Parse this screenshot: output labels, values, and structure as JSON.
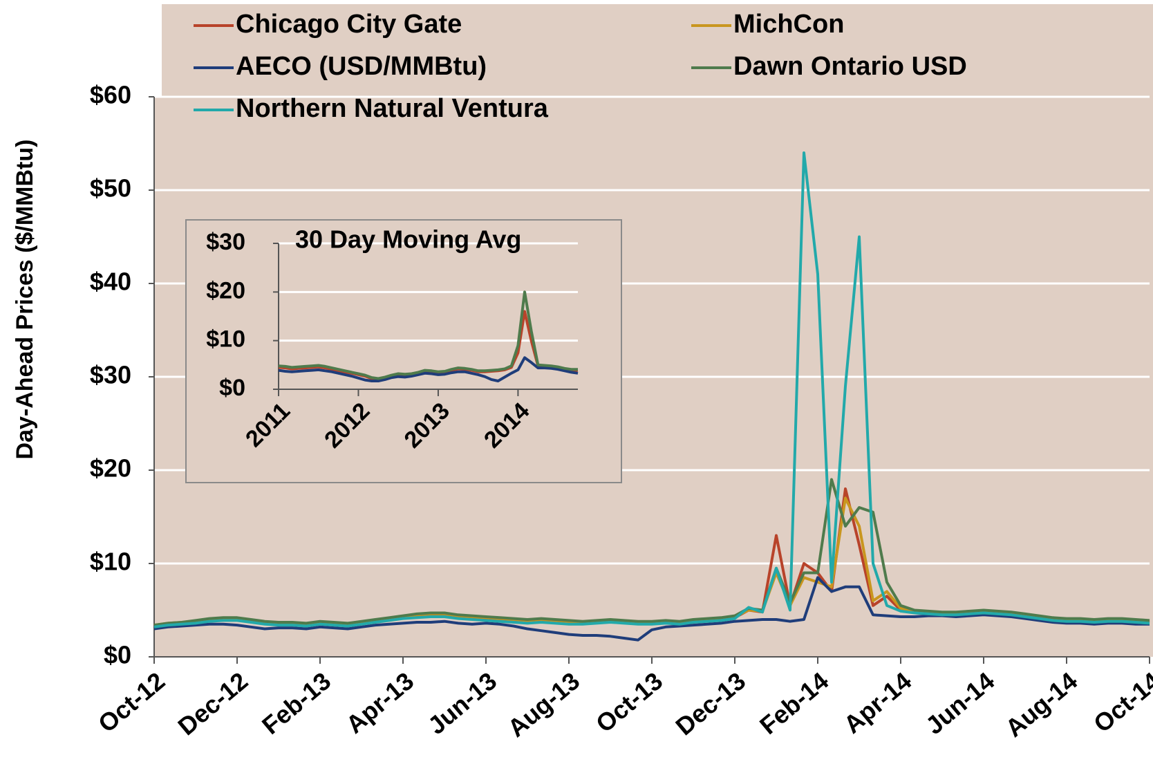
{
  "chart_data": [
    {
      "type": "line",
      "y_label": "Day-Ahead Prices ($/MMBtu)",
      "categories": [
        "Oct-12",
        null,
        null,
        null,
        null,
        null,
        "Dec-12",
        null,
        null,
        null,
        null,
        null,
        "Feb-13",
        null,
        null,
        null,
        null,
        null,
        "Apr-13",
        null,
        null,
        null,
        null,
        null,
        "Jun-13",
        null,
        null,
        null,
        null,
        null,
        "Aug-13",
        null,
        null,
        null,
        null,
        null,
        "Oct-13",
        null,
        null,
        null,
        null,
        null,
        "Dec-13",
        null,
        null,
        null,
        null,
        null,
        "Feb-14",
        null,
        null,
        null,
        null,
        null,
        "Apr-14",
        null,
        null,
        null,
        null,
        null,
        "Jun-14",
        null,
        null,
        null,
        null,
        null,
        "Aug-14",
        null,
        null,
        null,
        null,
        null,
        "Oct-14"
      ],
      "ylim": [
        0,
        60
      ],
      "yticks": [
        {
          "value": 0,
          "label": "$0"
        },
        {
          "value": 10,
          "label": "$10"
        },
        {
          "value": 20,
          "label": "$20"
        },
        {
          "value": 30,
          "label": "$30"
        },
        {
          "value": 40,
          "label": "$40"
        },
        {
          "value": 50,
          "label": "$50"
        },
        {
          "value": 60,
          "label": "$60"
        }
      ],
      "grid": true,
      "legend": "top",
      "series": [
        {
          "name": "Chicago City Gate",
          "color": "#b8432a",
          "values": [
            3.3,
            3.5,
            3.6,
            3.7,
            3.9,
            4.0,
            4.0,
            3.8,
            3.6,
            3.5,
            3.5,
            3.4,
            3.6,
            3.5,
            3.4,
            3.6,
            3.8,
            4.0,
            4.2,
            4.4,
            4.5,
            4.5,
            4.3,
            4.2,
            4.1,
            4.0,
            3.9,
            3.8,
            3.9,
            3.8,
            3.7,
            3.6,
            3.7,
            3.8,
            3.7,
            3.6,
            3.6,
            3.7,
            3.6,
            3.8,
            3.9,
            4.0,
            4.2,
            5.0,
            4.8,
            13.0,
            5.5,
            10.0,
            9.0,
            7.0,
            18.0,
            12.0,
            5.5,
            6.5,
            5.0,
            4.8,
            4.7,
            4.6,
            4.6,
            4.7,
            4.8,
            4.7,
            4.6,
            4.4,
            4.2,
            4.0,
            3.9,
            3.9,
            3.8,
            3.9,
            3.9,
            3.8,
            3.7
          ]
        },
        {
          "name": "MichCon",
          "color": "#c9961f",
          "values": [
            3.4,
            3.6,
            3.7,
            3.8,
            4.0,
            4.1,
            4.1,
            3.9,
            3.7,
            3.6,
            3.6,
            3.5,
            3.7,
            3.6,
            3.5,
            3.7,
            3.9,
            4.1,
            4.3,
            4.5,
            4.6,
            4.6,
            4.4,
            4.3,
            4.2,
            4.1,
            4.0,
            3.9,
            4.0,
            3.9,
            3.8,
            3.7,
            3.8,
            3.9,
            3.8,
            3.7,
            3.7,
            3.8,
            3.7,
            3.9,
            4.0,
            4.1,
            4.3,
            5.0,
            4.9,
            9.0,
            5.5,
            8.5,
            8.0,
            7.5,
            17.0,
            14.0,
            6.0,
            7.0,
            5.2,
            4.9,
            4.8,
            4.7,
            4.7,
            4.8,
            4.9,
            4.8,
            4.7,
            4.5,
            4.3,
            4.1,
            4.0,
            4.0,
            3.9,
            4.0,
            4.0,
            3.9,
            3.8
          ]
        },
        {
          "name": "AECO (USD/MMBtu)",
          "color": "#1f3d7a",
          "values": [
            3.0,
            3.2,
            3.3,
            3.4,
            3.5,
            3.5,
            3.4,
            3.2,
            3.0,
            3.1,
            3.1,
            3.0,
            3.2,
            3.1,
            3.0,
            3.2,
            3.4,
            3.5,
            3.6,
            3.7,
            3.7,
            3.8,
            3.6,
            3.5,
            3.6,
            3.5,
            3.3,
            3.0,
            2.8,
            2.6,
            2.4,
            2.3,
            2.3,
            2.2,
            2.0,
            1.8,
            2.9,
            3.2,
            3.3,
            3.4,
            3.5,
            3.6,
            3.8,
            3.9,
            4.0,
            4.0,
            3.8,
            4.0,
            8.5,
            7.0,
            7.5,
            7.5,
            4.5,
            4.4,
            4.3,
            4.3,
            4.4,
            4.4,
            4.3,
            4.4,
            4.5,
            4.4,
            4.3,
            4.1,
            3.9,
            3.7,
            3.6,
            3.6,
            3.5,
            3.6,
            3.6,
            3.5,
            3.5
          ]
        },
        {
          "name": "Dawn Ontario USD",
          "color": "#4f7b4c",
          "values": [
            3.4,
            3.6,
            3.7,
            3.9,
            4.1,
            4.2,
            4.2,
            4.0,
            3.8,
            3.7,
            3.7,
            3.6,
            3.8,
            3.7,
            3.6,
            3.8,
            4.0,
            4.2,
            4.4,
            4.6,
            4.7,
            4.7,
            4.5,
            4.4,
            4.3,
            4.2,
            4.1,
            4.0,
            4.1,
            4.0,
            3.9,
            3.8,
            3.9,
            4.0,
            3.9,
            3.8,
            3.8,
            3.9,
            3.8,
            4.0,
            4.1,
            4.2,
            4.4,
            5.2,
            5.0,
            9.5,
            5.8,
            9.0,
            9.0,
            19.0,
            14.0,
            16.0,
            15.5,
            8.0,
            5.5,
            5.0,
            4.9,
            4.8,
            4.8,
            4.9,
            5.0,
            4.9,
            4.8,
            4.6,
            4.4,
            4.2,
            4.1,
            4.1,
            4.0,
            4.1,
            4.1,
            4.0,
            3.9
          ]
        },
        {
          "name": "Northern Natural Ventura",
          "color": "#22a9aa",
          "values": [
            3.2,
            3.4,
            3.5,
            3.6,
            3.8,
            3.9,
            3.9,
            3.7,
            3.5,
            3.4,
            3.4,
            3.3,
            3.5,
            3.4,
            3.3,
            3.5,
            3.7,
            3.9,
            4.1,
            4.2,
            4.3,
            4.3,
            4.1,
            4.0,
            3.9,
            3.8,
            3.7,
            3.6,
            3.7,
            3.6,
            3.5,
            3.5,
            3.6,
            3.7,
            3.6,
            3.5,
            3.5,
            3.6,
            3.5,
            3.7,
            3.8,
            3.9,
            4.1,
            5.3,
            4.8,
            9.5,
            5.0,
            54.0,
            41.0,
            8.0,
            29.0,
            45.0,
            10.0,
            5.5,
            4.9,
            4.7,
            4.6,
            4.5,
            4.5,
            4.6,
            4.7,
            4.6,
            4.5,
            4.3,
            4.1,
            3.9,
            3.8,
            3.8,
            3.7,
            3.8,
            3.8,
            3.7,
            3.6
          ]
        }
      ]
    },
    {
      "type": "line",
      "title": "30 Day Moving Avg",
      "categories": [
        "2011",
        null,
        null,
        null,
        null,
        null,
        null,
        null,
        null,
        null,
        null,
        null,
        "2012",
        null,
        null,
        null,
        null,
        null,
        null,
        null,
        null,
        null,
        null,
        null,
        "2013",
        null,
        null,
        null,
        null,
        null,
        null,
        null,
        null,
        null,
        null,
        null,
        "2014",
        null,
        null,
        null,
        null,
        null,
        null,
        null,
        null,
        null
      ],
      "ylim": [
        0,
        30
      ],
      "yticks": [
        {
          "value": 0,
          "label": "$0"
        },
        {
          "value": 10,
          "label": "$10"
        },
        {
          "value": 20,
          "label": "$20"
        },
        {
          "value": 30,
          "label": "$30"
        }
      ],
      "grid": true,
      "series": [
        {
          "color": "#b8432a",
          "values": [
            4.5,
            4.4,
            4.2,
            4.3,
            4.4,
            4.5,
            4.6,
            4.4,
            4.1,
            3.8,
            3.5,
            3.3,
            3.0,
            2.7,
            2.2,
            2.0,
            2.3,
            2.7,
            3.0,
            2.9,
            3.0,
            3.3,
            3.7,
            3.6,
            3.4,
            3.5,
            3.9,
            4.2,
            4.1,
            3.9,
            3.6,
            3.6,
            3.7,
            3.8,
            4.0,
            4.5,
            7.5,
            16.0,
            10.0,
            4.8,
            4.7,
            4.6,
            4.4,
            4.1,
            3.9,
            3.9
          ]
        },
        {
          "color": "#1f3d7a",
          "values": [
            3.9,
            3.7,
            3.6,
            3.7,
            3.8,
            3.9,
            4.0,
            3.8,
            3.6,
            3.3,
            3.0,
            2.7,
            2.3,
            1.9,
            1.7,
            1.7,
            2.0,
            2.4,
            2.6,
            2.5,
            2.7,
            3.0,
            3.3,
            3.2,
            3.0,
            3.1,
            3.4,
            3.6,
            3.6,
            3.3,
            3.0,
            2.6,
            2.0,
            1.7,
            2.5,
            3.3,
            4.0,
            6.5,
            5.5,
            4.4,
            4.4,
            4.3,
            4.1,
            3.8,
            3.5,
            3.3
          ]
        },
        {
          "color": "#4f7b4c",
          "values": [
            4.8,
            4.7,
            4.5,
            4.6,
            4.7,
            4.8,
            4.9,
            4.7,
            4.4,
            4.1,
            3.8,
            3.5,
            3.2,
            2.9,
            2.4,
            2.2,
            2.5,
            2.9,
            3.2,
            3.1,
            3.2,
            3.5,
            3.9,
            3.8,
            3.6,
            3.7,
            4.1,
            4.4,
            4.3,
            4.1,
            3.8,
            3.8,
            3.9,
            4.0,
            4.2,
            4.8,
            9.0,
            20.0,
            12.0,
            5.0,
            4.9,
            4.8,
            4.6,
            4.3,
            4.1,
            4.1
          ]
        }
      ]
    }
  ]
}
